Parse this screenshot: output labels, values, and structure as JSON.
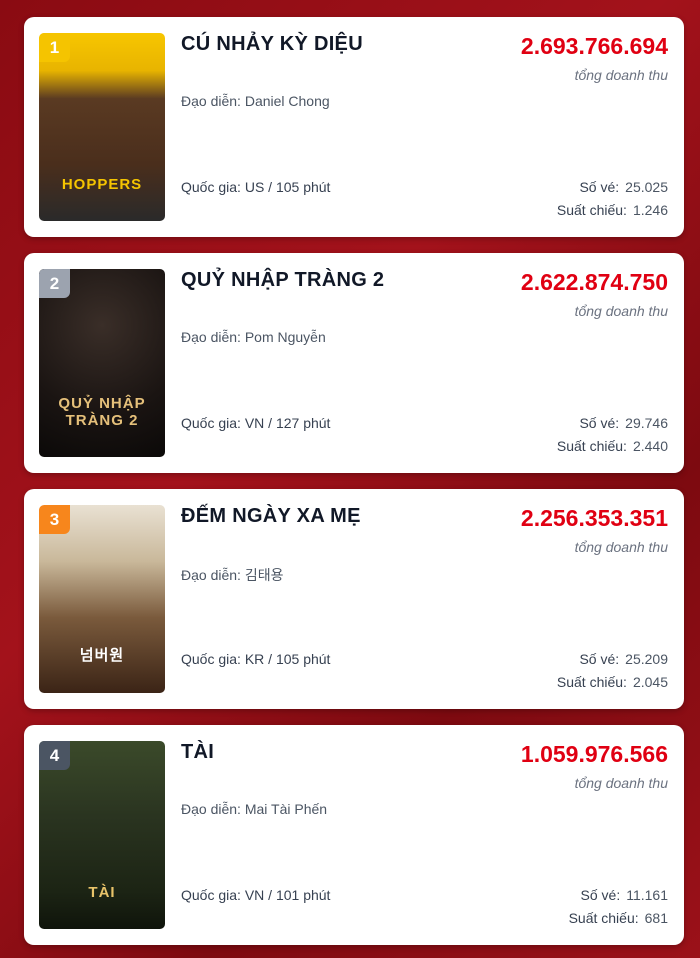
{
  "revenue_label": "tổng doanh thu",
  "director_label": "Đạo diễn:",
  "country_label": "Quốc gia:",
  "tickets_label": "Số vé:",
  "shows_label": "Suất chiếu:",
  "movies": [
    {
      "rank": "1",
      "title": "CÚ NHẢY KỲ DIỆU",
      "director": "Daniel Chong",
      "country": "US / 105 phút",
      "revenue": "2.693.766.694",
      "tickets": "25.025",
      "shows": "1.246",
      "poster_text": "HOPPERS",
      "badge_color": "#f5c400"
    },
    {
      "rank": "2",
      "title": "QUỶ NHẬP TRÀNG 2",
      "director": "Pom Nguyễn",
      "country": "VN / 127 phút",
      "revenue": "2.622.874.750",
      "tickets": "29.746",
      "shows": "2.440",
      "poster_text": "QUỶ NHẬP TRÀNG 2",
      "badge_color": "#9ca3af"
    },
    {
      "rank": "3",
      "title": "ĐẾM NGÀY XA MẸ",
      "director": "김태용",
      "country": "KR / 105 phút",
      "revenue": "2.256.353.351",
      "tickets": "25.209",
      "shows": "2.045",
      "poster_text": "넘버원",
      "badge_color": "#f7861c"
    },
    {
      "rank": "4",
      "title": "TÀI",
      "director": "Mai Tài Phến",
      "country": "VN / 101 phút",
      "revenue": "1.059.976.566",
      "tickets": "11.161",
      "shows": "681",
      "poster_text": "TÀI",
      "badge_color": "#4b5563"
    }
  ]
}
